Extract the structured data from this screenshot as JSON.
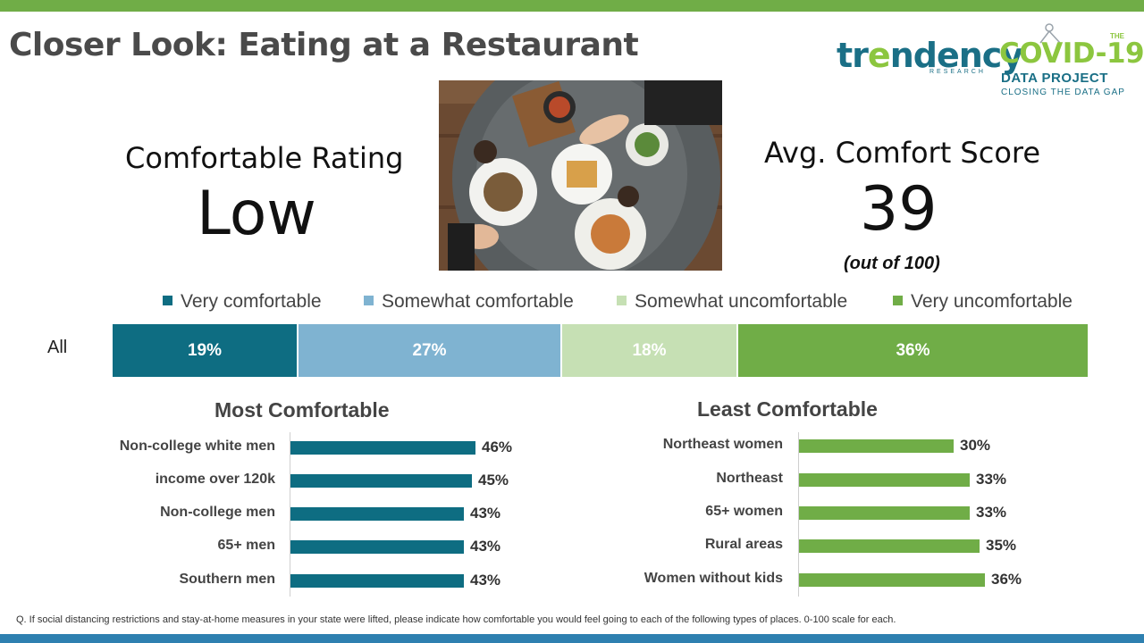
{
  "title": "Closer Look: Eating at a Restaurant",
  "logos": {
    "trendency_a": "tr",
    "trendency_b": "e",
    "trendency_c": "ndency",
    "trendency_sub": "RESEARCH",
    "covid_the": "THE",
    "covid_big": "COVID-19",
    "covid_mid": "DATA PROJECT",
    "covid_small": "CLOSING THE DATA GAP"
  },
  "rating": {
    "label": "Comfortable Rating",
    "value": "Low"
  },
  "score": {
    "label": "Avg. Comfort Score",
    "value": "39",
    "note": "(out of 100)"
  },
  "colors": {
    "very_comfortable": "#0e6d82",
    "somewhat_comfortable": "#7fb3d1",
    "somewhat_uncomfortable": "#c6e0b4",
    "very_uncomfortable": "#70ad47"
  },
  "chart_data": [
    {
      "type": "bar",
      "orientation": "horizontal-stacked",
      "categories": [
        "All"
      ],
      "series": [
        {
          "name": "Very comfortable",
          "values": [
            19
          ],
          "labels": [
            "19%"
          ]
        },
        {
          "name": "Somewhat comfortable",
          "values": [
            27
          ],
          "labels": [
            "27%"
          ]
        },
        {
          "name": "Somewhat uncomfortable",
          "values": [
            18
          ],
          "labels": [
            "18%"
          ]
        },
        {
          "name": "Very uncomfortable",
          "values": [
            36
          ],
          "labels": [
            "36%"
          ]
        }
      ],
      "legend": "top"
    },
    {
      "type": "bar",
      "orientation": "horizontal",
      "title": "Most Comfortable",
      "categories": [
        "Non-college white men",
        "income over 120k",
        "Non-college men",
        "65+ men",
        "Southern men"
      ],
      "values": [
        46,
        45,
        43,
        43,
        43
      ],
      "labels": [
        "46%",
        "45%",
        "43%",
        "43%",
        "43%"
      ]
    },
    {
      "type": "bar",
      "orientation": "horizontal",
      "title": "Least Comfortable",
      "categories": [
        "Northeast women",
        "Northeast",
        "65+ women",
        "Rural areas",
        "Women without kids"
      ],
      "values": [
        30,
        33,
        33,
        35,
        36
      ],
      "labels": [
        "30%",
        "33%",
        "33%",
        "35%",
        "36%"
      ]
    }
  ],
  "footnote": "Q. If social distancing restrictions and stay-at-home measures in your state were lifted, please indicate how comfortable you would feel going to each of the following types of places. 0-100 scale for each."
}
